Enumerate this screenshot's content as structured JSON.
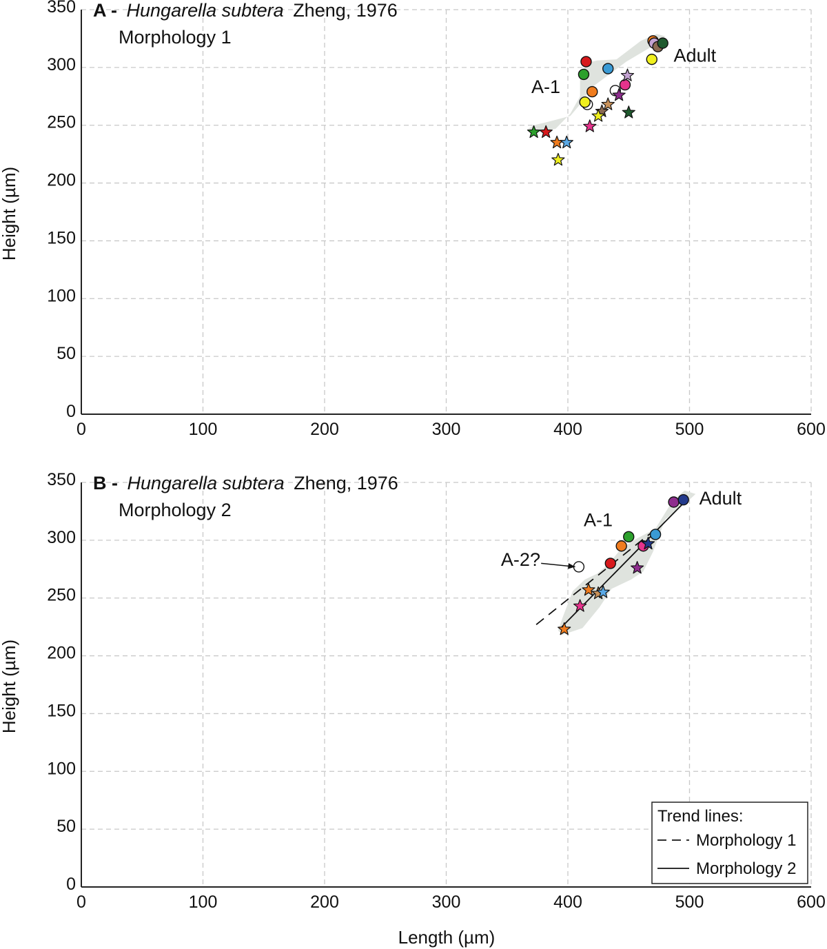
{
  "colors": {
    "red": "#d7191c",
    "green": "#2ca02c",
    "blue": "#3a9bd5",
    "orange": "#f07c1e",
    "yellow": "#f0f01e",
    "lime": "#c8e65a",
    "purple": "#8e2d8e",
    "magenta": "#e6338c",
    "lilac": "#c4a3d2",
    "brown": "#8b6a52",
    "darkgreen": "#1f5a2e",
    "tan": "#c9925a",
    "white": "#ffffff",
    "navy": "#233a8c",
    "sky": "#5aa9e6",
    "hull": "#dfe3de"
  },
  "axes": {
    "xlabel": "Length (µm)",
    "ylabel": "Height (µm)"
  },
  "chart_data": [
    {
      "type": "scatter",
      "title_bold": "A -",
      "title_italic": "Hungarella subtera",
      "title_rest": "Zheng, 1976",
      "subtitle": "Morphology 1",
      "xlabel": "",
      "ylabel": "Height (µm)",
      "xlim": [
        0,
        600
      ],
      "ylim": [
        0,
        350
      ],
      "xticks": [
        "0",
        "100",
        "200",
        "300",
        "400",
        "500",
        "600"
      ],
      "yticks": [
        "0",
        "50",
        "100",
        "150",
        "200",
        "250",
        "300",
        "350"
      ],
      "grid": true,
      "annotations": [
        {
          "text": "A-1",
          "x": 370,
          "y": 278
        },
        {
          "text": "Adult",
          "x": 487,
          "y": 305
        }
      ],
      "hull": [
        [
          372,
          250
        ],
        [
          384,
          253
        ],
        [
          402,
          258
        ],
        [
          410,
          268
        ],
        [
          420,
          283
        ],
        [
          448,
          305
        ],
        [
          472,
          320
        ],
        [
          480,
          327
        ],
        [
          473,
          329
        ],
        [
          460,
          323
        ],
        [
          440,
          307
        ],
        [
          424,
          306
        ],
        [
          416,
          304
        ],
        [
          410,
          293
        ],
        [
          410,
          275
        ],
        [
          402,
          260
        ],
        [
          390,
          247
        ],
        [
          378,
          244
        ],
        [
          366,
          246
        ]
      ],
      "points": [
        {
          "shape": "circle",
          "color": "red",
          "x": 415,
          "y": 305
        },
        {
          "shape": "circle",
          "color": "green",
          "x": 413,
          "y": 294
        },
        {
          "shape": "circle",
          "color": "blue",
          "x": 433,
          "y": 299
        },
        {
          "shape": "circle",
          "color": "orange",
          "x": 420,
          "y": 279
        },
        {
          "shape": "circle",
          "color": "white",
          "x": 416,
          "y": 268
        },
        {
          "shape": "circle",
          "color": "yellow",
          "x": 414,
          "y": 270
        },
        {
          "shape": "circle",
          "color": "white",
          "x": 439,
          "y": 280
        },
        {
          "shape": "circle",
          "color": "magenta",
          "x": 447,
          "y": 285
        },
        {
          "shape": "circle",
          "color": "orange",
          "x": 470,
          "y": 323
        },
        {
          "shape": "circle",
          "color": "lilac",
          "x": 471,
          "y": 321
        },
        {
          "shape": "circle",
          "color": "brown",
          "x": 474,
          "y": 318
        },
        {
          "shape": "circle",
          "color": "darkgreen",
          "x": 478,
          "y": 321
        },
        {
          "shape": "circle",
          "color": "yellow",
          "x": 469,
          "y": 307
        },
        {
          "shape": "star",
          "color": "lilac",
          "x": 449,
          "y": 293
        },
        {
          "shape": "star",
          "color": "purple",
          "x": 442,
          "y": 276
        },
        {
          "shape": "star",
          "color": "tan",
          "x": 433,
          "y": 268
        },
        {
          "shape": "star",
          "color": "brown",
          "x": 428,
          "y": 262
        },
        {
          "shape": "star",
          "color": "yellow",
          "x": 425,
          "y": 258
        },
        {
          "shape": "star",
          "color": "darkgreen",
          "x": 450,
          "y": 261
        },
        {
          "shape": "star",
          "color": "magenta",
          "x": 418,
          "y": 249
        },
        {
          "shape": "star",
          "color": "green",
          "x": 372,
          "y": 244
        },
        {
          "shape": "star",
          "color": "red",
          "x": 382,
          "y": 244
        },
        {
          "shape": "star",
          "color": "orange",
          "x": 391,
          "y": 235
        },
        {
          "shape": "star",
          "color": "sky",
          "x": 399,
          "y": 235
        },
        {
          "shape": "star",
          "color": "yellow",
          "x": 392,
          "y": 220
        }
      ]
    },
    {
      "type": "scatter",
      "title_bold": "B -",
      "title_italic": "Hungarella subtera",
      "title_rest": "Zheng, 1976",
      "subtitle": "Morphology 2",
      "xlabel": "Length (µm)",
      "ylabel": "Height (µm)",
      "xlim": [
        0,
        600
      ],
      "ylim": [
        0,
        350
      ],
      "xticks": [
        "0",
        "100",
        "200",
        "300",
        "400",
        "500",
        "600"
      ],
      "yticks": [
        "0",
        "50",
        "100",
        "150",
        "200",
        "250",
        "300",
        "350"
      ],
      "grid": true,
      "annotations": [
        {
          "text": "A-1",
          "x": 413,
          "y": 312
        },
        {
          "text": "Adult",
          "x": 508,
          "y": 331
        },
        {
          "text": "A-2?",
          "x": 345,
          "y": 278
        }
      ],
      "callout": {
        "from": [
          378,
          280
        ],
        "to": [
          406,
          277
        ]
      },
      "hull": [
        [
          395,
          218
        ],
        [
          412,
          224
        ],
        [
          426,
          242
        ],
        [
          436,
          258
        ],
        [
          452,
          266
        ],
        [
          462,
          273
        ],
        [
          470,
          290
        ],
        [
          480,
          318
        ],
        [
          500,
          335
        ],
        [
          505,
          340
        ],
        [
          496,
          343
        ],
        [
          486,
          334
        ],
        [
          472,
          310
        ],
        [
          456,
          301
        ],
        [
          444,
          293
        ],
        [
          434,
          280
        ],
        [
          424,
          271
        ],
        [
          414,
          266
        ],
        [
          404,
          256
        ],
        [
          396,
          234
        ],
        [
          392,
          222
        ]
      ],
      "trendlines": [
        {
          "name": "Morphology 1",
          "style": "dashed",
          "from": [
            374,
            227
          ],
          "to": [
            468,
            306
          ]
        },
        {
          "name": "Morphology 2",
          "style": "solid",
          "from": [
            395,
            225
          ],
          "to": [
            494,
            331
          ]
        }
      ],
      "legend": {
        "title": "Trend lines:",
        "entries": [
          "Morphology 1",
          "Morphology 2"
        ],
        "position": "bottom-right"
      },
      "points": [
        {
          "shape": "circle",
          "color": "purple",
          "x": 487,
          "y": 333
        },
        {
          "shape": "circle",
          "color": "navy",
          "x": 495,
          "y": 335
        },
        {
          "shape": "circle",
          "color": "green",
          "x": 450,
          "y": 303
        },
        {
          "shape": "circle",
          "color": "orange",
          "x": 444,
          "y": 295
        },
        {
          "shape": "circle",
          "color": "blue",
          "x": 472,
          "y": 305
        },
        {
          "shape": "circle",
          "color": "magenta",
          "x": 462,
          "y": 295
        },
        {
          "shape": "circle",
          "color": "red",
          "x": 435,
          "y": 280
        },
        {
          "shape": "circle",
          "color": "white",
          "x": 409,
          "y": 277
        },
        {
          "shape": "star",
          "color": "navy",
          "x": 466,
          "y": 297
        },
        {
          "shape": "star",
          "color": "purple",
          "x": 457,
          "y": 276
        },
        {
          "shape": "star",
          "color": "orange",
          "x": 417,
          "y": 257
        },
        {
          "shape": "star",
          "color": "tan",
          "x": 425,
          "y": 254
        },
        {
          "shape": "star",
          "color": "sky",
          "x": 429,
          "y": 255
        },
        {
          "shape": "star",
          "color": "magenta",
          "x": 410,
          "y": 243
        },
        {
          "shape": "star",
          "color": "orange",
          "x": 397,
          "y": 223
        }
      ]
    }
  ]
}
